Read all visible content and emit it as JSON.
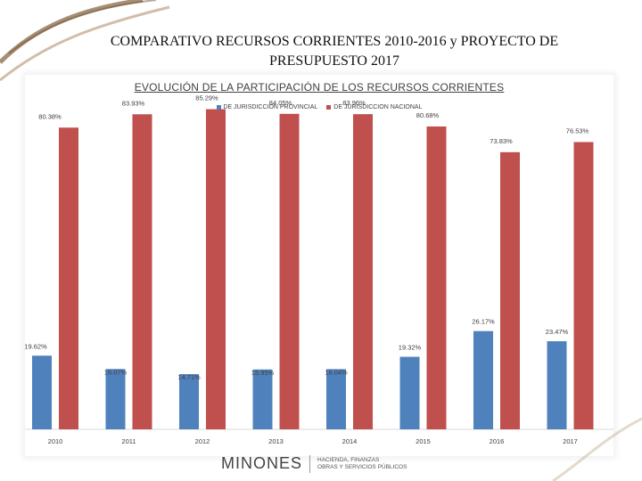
{
  "slide": {
    "title_line1": "COMPARATIVO RECURSOS CORRIENTES 2010-2016 y PROYECTO DE",
    "title_line2": "PRESUPUESTO 2017"
  },
  "chart_data": {
    "type": "bar",
    "title": "EVOLUCIÓN DE LA PARTICIPACIÓN DE LOS RECURSOS CORRIENTES",
    "categories": [
      "2010",
      "2011",
      "2012",
      "2013",
      "2014",
      "2015",
      "2016",
      "2017"
    ],
    "series": [
      {
        "name": "DE JURISDICCION PROVINCIAL",
        "color": "#4F81BD",
        "values": [
          19.62,
          16.07,
          14.71,
          15.95,
          16.04,
          19.32,
          26.17,
          23.47
        ],
        "labels": [
          "19.62%",
          "16.07%",
          "14.71%",
          "15.95%",
          "16.04%",
          "19.32%",
          "26.17%",
          "23.47%"
        ]
      },
      {
        "name": "DE JURISDICCION NACIONAL",
        "color": "#C0504D",
        "values": [
          80.38,
          83.93,
          85.29,
          84.05,
          83.96,
          80.68,
          73.83,
          76.53
        ],
        "labels": [
          "80.38%",
          "83.93%",
          "85.29%",
          "84.05%",
          "83.96%",
          "80.68%",
          "73.83%",
          "76.53%"
        ]
      }
    ],
    "xlabel": "",
    "ylabel": "",
    "ylim": [
      0,
      90
    ],
    "grid": false,
    "legend_position": "top-center"
  },
  "footer": {
    "logo_text": "MINONES",
    "logo_line1": "HACIENDA, FINANZAS",
    "logo_line2": "OBRAS Y SERVICIOS PÚBLICOS"
  }
}
